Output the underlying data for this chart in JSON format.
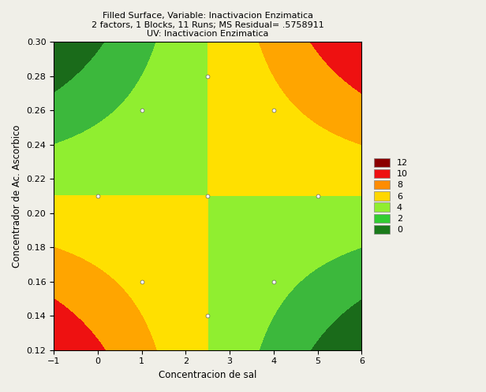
{
  "title_line1": "Filled Surface, Variable: Inactivacion Enzimatica",
  "title_line2": "2 factors, 1 Blocks, 11 Runs; MS Residual= .5758911",
  "title_line3": "UV: Inactivacion Enzimatica",
  "xlabel": "Concentracion de sal",
  "ylabel": "Concentrador de Ac. Ascorbico",
  "xlim": [
    -1,
    6
  ],
  "ylim": [
    0.12,
    0.3
  ],
  "xticks": [
    -1,
    0,
    1,
    2,
    3,
    4,
    5,
    6
  ],
  "yticks": [
    0.12,
    0.14,
    0.16,
    0.18,
    0.2,
    0.22,
    0.24,
    0.26,
    0.28,
    0.3
  ],
  "levels": [
    0,
    2,
    4,
    6,
    8,
    10,
    12,
    14
  ],
  "legend_labels": [
    "12",
    "10",
    "8",
    "6",
    "4",
    "2",
    "0"
  ],
  "legend_colors": [
    "#8B0000",
    "#EE1111",
    "#FF8C00",
    "#FFD700",
    "#90EE30",
    "#32CD32",
    "#1A7A1A"
  ],
  "scatter_points": [
    [
      0,
      0.21
    ],
    [
      1,
      0.26
    ],
    [
      1,
      0.16
    ],
    [
      2.5,
      0.28
    ],
    [
      2.5,
      0.21
    ],
    [
      2.5,
      0.14
    ],
    [
      4,
      0.26
    ],
    [
      4,
      0.16
    ],
    [
      5,
      0.21
    ]
  ],
  "background_color": "#f0efe8"
}
